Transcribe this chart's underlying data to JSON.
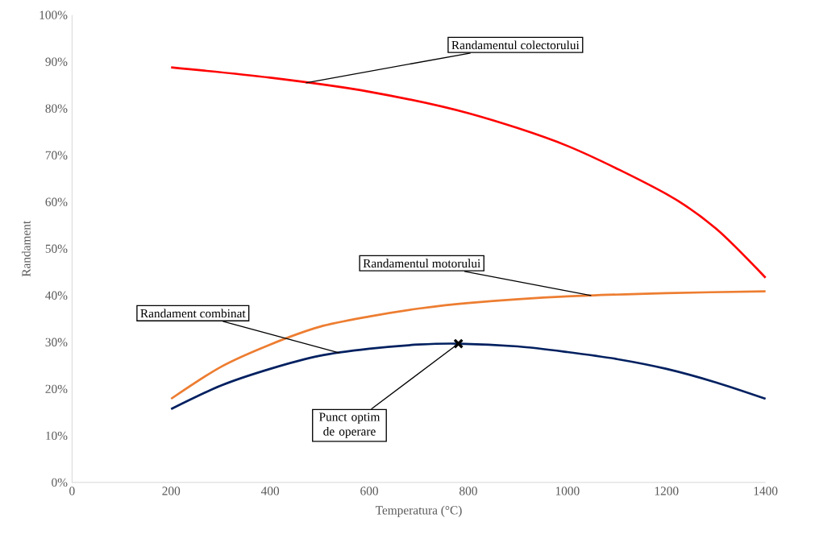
{
  "chart_data": {
    "type": "line",
    "xlabel": "Temperatura (°C)",
    "ylabel": "Randament",
    "xlim": [
      0,
      1400
    ],
    "xticks": [
      0,
      200,
      400,
      600,
      800,
      1000,
      1200,
      1400
    ],
    "ylim": [
      0,
      100
    ],
    "yticks": [
      {
        "value": 0,
        "label": "0%"
      },
      {
        "value": 10,
        "label": "10%"
      },
      {
        "value": 20,
        "label": "20%"
      },
      {
        "value": 30,
        "label": "30%"
      },
      {
        "value": 40,
        "label": "40%"
      },
      {
        "value": 50,
        "label": "50%"
      },
      {
        "value": 60,
        "label": "60%"
      },
      {
        "value": 70,
        "label": "70%"
      },
      {
        "value": 80,
        "label": "80%"
      },
      {
        "value": 90,
        "label": "90%"
      },
      {
        "value": 100,
        "label": "100%"
      }
    ],
    "grid": false,
    "series": [
      {
        "color": "#ff0000",
        "marker": "none",
        "x": [
          200,
          400,
          600,
          800,
          1000,
          1200,
          1300,
          1400
        ],
        "values": [
          88.8,
          86.6,
          83.6,
          79,
          72,
          61.7,
          54.3,
          43.8
        ]
      },
      {
        "color": "#ed7d31",
        "marker": "none",
        "x": [
          200,
          300,
          400,
          500,
          600,
          700,
          800,
          1000,
          1200,
          1400
        ],
        "values": [
          17.9,
          24.7,
          29.5,
          33.3,
          35.5,
          37.2,
          38.4,
          39.8,
          40.5,
          40.9
        ]
      },
      {
        "color": "#002060",
        "marker": "none",
        "x": [
          200,
          300,
          400,
          500,
          600,
          700,
          780,
          900,
          1000,
          1100,
          1200,
          1300,
          1400
        ],
        "values": [
          15.7,
          20.7,
          24.3,
          27.1,
          28.6,
          29.5,
          29.7,
          29.1,
          27.9,
          26.4,
          24.3,
          21.4,
          17.9
        ]
      },
      {
        "type": "scatter",
        "color": "#000000",
        "marker": "cross",
        "x": [
          780
        ],
        "values": [
          29.7
        ]
      }
    ],
    "annotations": [
      {
        "text": "Randamentul colectorului",
        "x": 472,
        "y": 85.5
      },
      {
        "text": "Randamentul motorului",
        "x": 1048,
        "y": 40.0
      },
      {
        "text": "Randament combinat",
        "x": 540,
        "y": 27.7
      },
      {
        "text": "Punct optim de operare",
        "x": 780,
        "y": 29.7
      }
    ]
  }
}
